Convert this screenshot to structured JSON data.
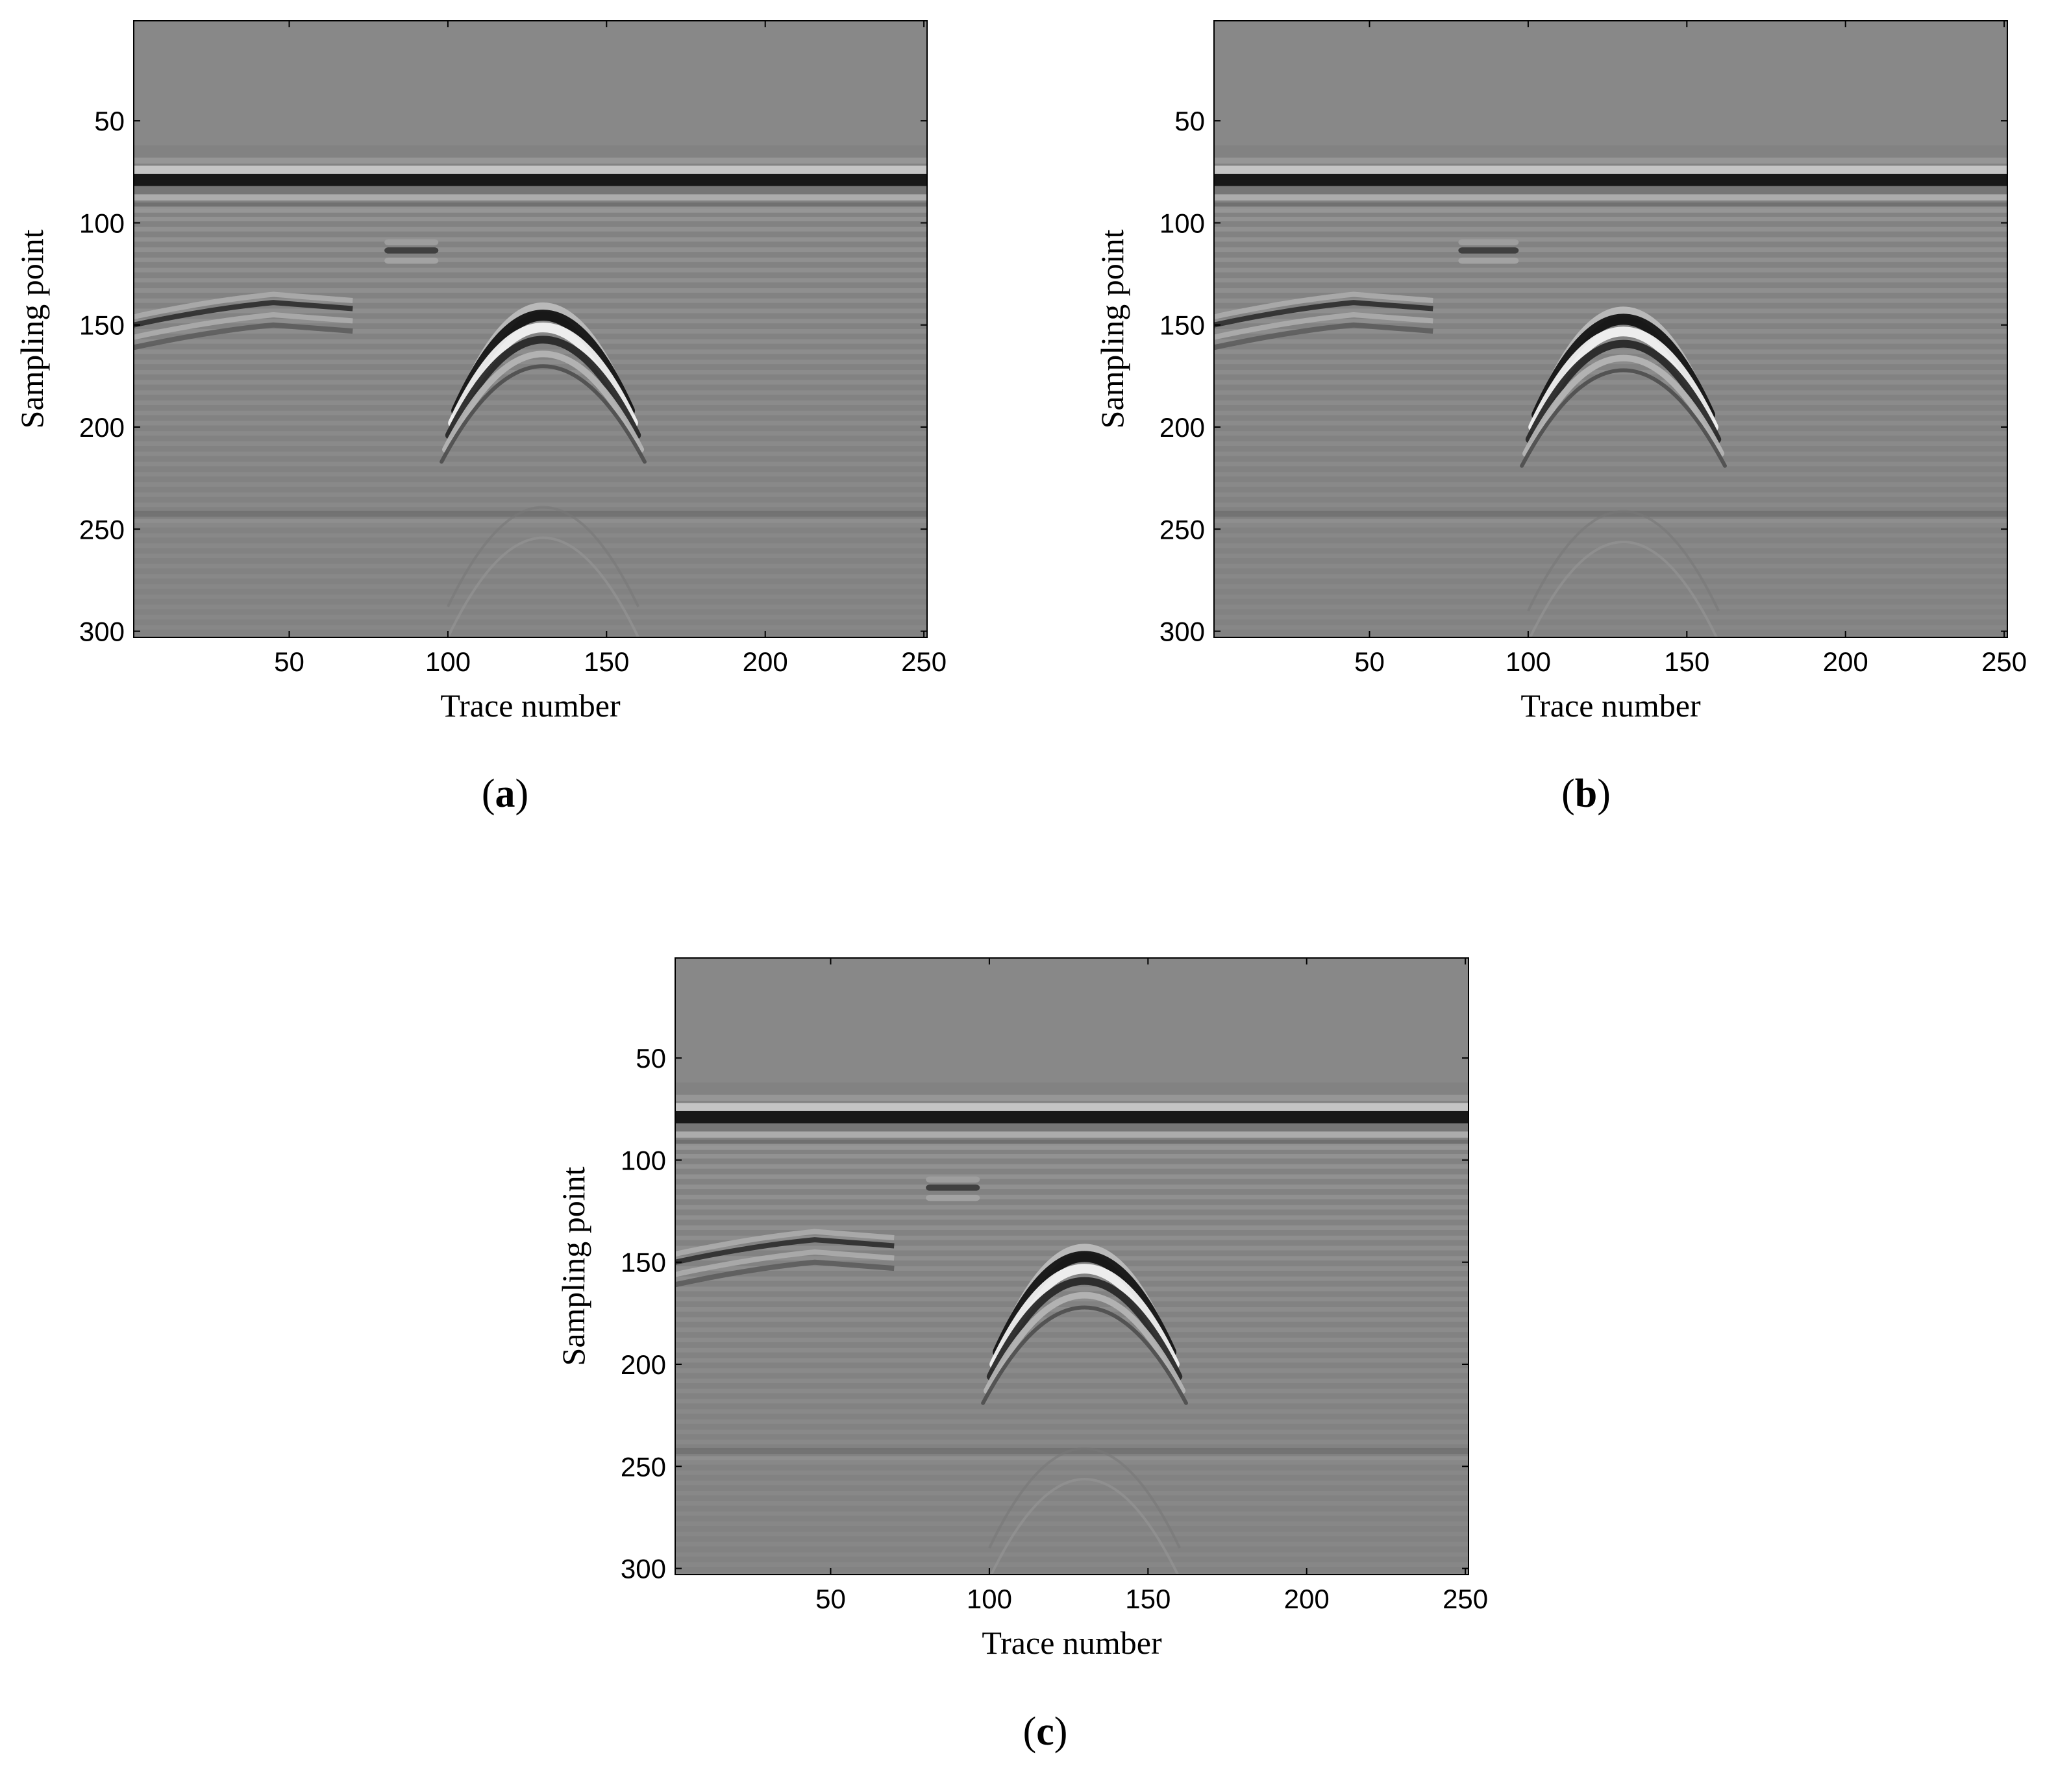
{
  "chart_data": [
    {
      "type": "heatmap",
      "panel_label": "a",
      "xlabel": "Trace number",
      "ylabel": "Sampling point",
      "xlim": [
        1,
        251
      ],
      "ylim": [
        303,
        1
      ],
      "xticks": [
        50,
        100,
        150,
        200,
        250
      ],
      "yticks": [
        50,
        100,
        150,
        200,
        250,
        300
      ],
      "colormap": "gray",
      "features": {
        "direct_wave_center": 78,
        "hyperbola_apex": {
          "trace": 130,
          "sample": 143
        },
        "reflector_left": {
          "from_trace": 1,
          "to_trace": 70,
          "sample": 148
        },
        "reflector_mid": {
          "from_trace": 80,
          "to_trace": 97,
          "sample": 112
        },
        "deep_layer_sample": 241
      }
    },
    {
      "type": "heatmap",
      "panel_label": "b",
      "xlabel": "Trace number",
      "ylabel": "Sampling point",
      "xlim": [
        1,
        251
      ],
      "ylim": [
        303,
        1
      ],
      "xticks": [
        50,
        100,
        150,
        200,
        250
      ],
      "yticks": [
        50,
        100,
        150,
        200,
        250,
        300
      ],
      "colormap": "gray",
      "features": {
        "direct_wave_center": 78,
        "hyperbola_apex": {
          "trace": 130,
          "sample": 145
        },
        "reflector_left": {
          "from_trace": 1,
          "to_trace": 70,
          "sample": 148
        },
        "reflector_mid": {
          "from_trace": 78,
          "to_trace": 97,
          "sample": 112
        },
        "deep_layer_sample": 241
      }
    },
    {
      "type": "heatmap",
      "panel_label": "c",
      "xlabel": "Trace number",
      "ylabel": "Sampling point",
      "xlim": [
        1,
        251
      ],
      "ylim": [
        303,
        1
      ],
      "xticks": [
        50,
        100,
        150,
        200,
        250
      ],
      "yticks": [
        50,
        100,
        150,
        200,
        250,
        300
      ],
      "colormap": "gray",
      "features": {
        "direct_wave_center": 78,
        "hyperbola_apex": {
          "trace": 130,
          "sample": 145
        },
        "reflector_left": {
          "from_trace": 1,
          "to_trace": 70,
          "sample": 148
        },
        "reflector_mid": {
          "from_trace": 80,
          "to_trace": 97,
          "sample": 112
        },
        "deep_layer_sample": 241
      }
    }
  ]
}
